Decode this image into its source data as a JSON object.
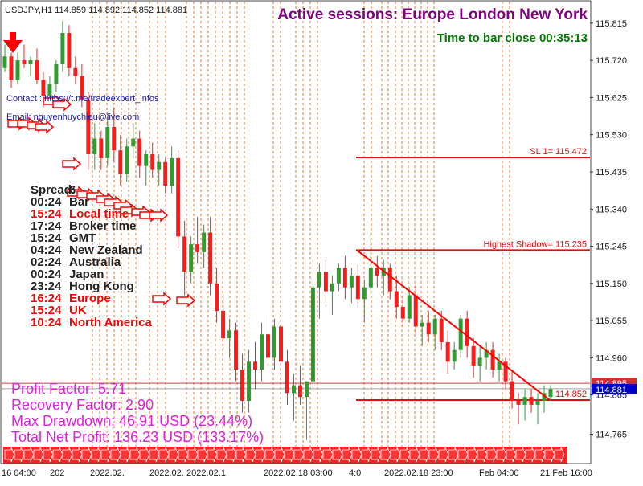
{
  "chart_data": {
    "type": "candlestick",
    "symbol_header": "USDJPY,H1  114.859 114.892 114.852 114.881",
    "ylim": [
      114.69,
      115.87
    ],
    "y_ticks": [
      "115.815",
      "115.720",
      "115.625",
      "115.530",
      "115.435",
      "115.340",
      "115.245",
      "115.150",
      "115.055",
      "114.960",
      "114.865",
      "114.765"
    ],
    "current_price_label": "114.881",
    "current_price": 114.881,
    "ask_price_label": "114.895",
    "ask_price": 114.895,
    "x_tick_labels": [
      "16 04:00",
      "202",
      "2022.02.",
      "2022.02.",
      "2022.02.1",
      "2022.02.18 03:00",
      "4:0",
      "2022.02.18 23:00",
      "Feb 04:00",
      "21 Feb 16:00"
    ],
    "session_title": "Active sessions:  Europe London New York",
    "bar_timer": "Time to bar close 00:35:13",
    "contact": "Contact : https://t.me/tradeexpert_infos",
    "email": "Email: nguyenhuychieu@live.com",
    "levels": [
      {
        "label": "SL 1= 115.472",
        "value": 115.472
      },
      {
        "label": "Highest Shadow= 115.235",
        "value": 115.235
      },
      {
        "label": "114.852",
        "value": 114.852
      }
    ],
    "info_lines": [
      {
        "time": "Spread:",
        "label": "6",
        "color": "#222222"
      },
      {
        "time": "00:24",
        "label": "Bar",
        "color": "#222222"
      },
      {
        "time": "15:24",
        "label": "Local time",
        "color": "#ff0000"
      },
      {
        "time": "17:24",
        "label": "Broker time",
        "color": "#222222"
      },
      {
        "time": "15:24",
        "label": "GMT",
        "color": "#222222"
      },
      {
        "time": "04:24",
        "label": "New Zealand",
        "color": "#222222"
      },
      {
        "time": "02:24",
        "label": "Australia",
        "color": "#222222"
      },
      {
        "time": "00:24",
        "label": "Japan",
        "color": "#222222"
      },
      {
        "time": "23:24",
        "label": "Hong Kong",
        "color": "#222222"
      },
      {
        "time": "16:24",
        "label": "Europe",
        "color": "#ff0000"
      },
      {
        "time": "15:24",
        "label": "UK",
        "color": "#ff0000"
      },
      {
        "time": "10:24",
        "label": "North America",
        "color": "#ff0000"
      }
    ],
    "stats": [
      "Profit Factor: 5.71",
      "Recovery Factor: 2.90",
      "Max Drawdown: 46.91 USD (23.44%)",
      "Total Net Profit: 136.23 USD (133.17%)"
    ],
    "candles": [
      [
        115.7,
        115.76,
        115.69,
        115.73
      ],
      [
        115.73,
        115.74,
        115.65,
        115.67
      ],
      [
        115.67,
        115.74,
        115.66,
        115.72
      ],
      [
        115.72,
        115.76,
        115.7,
        115.71
      ],
      [
        115.71,
        115.73,
        115.68,
        115.72
      ],
      [
        115.72,
        115.75,
        115.66,
        115.67
      ],
      [
        115.67,
        115.69,
        115.6,
        115.63
      ],
      [
        115.63,
        115.68,
        115.61,
        115.66
      ],
      [
        115.66,
        115.72,
        115.64,
        115.71
      ],
      [
        115.71,
        115.82,
        115.69,
        115.79
      ],
      [
        115.79,
        115.81,
        115.68,
        115.7
      ],
      [
        115.7,
        115.73,
        115.66,
        115.68
      ],
      [
        115.68,
        115.71,
        115.6,
        115.62
      ],
      [
        115.62,
        115.64,
        115.44,
        115.48
      ],
      [
        115.48,
        115.56,
        115.44,
        115.52
      ],
      [
        115.52,
        115.54,
        115.44,
        115.47
      ],
      [
        115.47,
        115.57,
        115.45,
        115.55
      ],
      [
        115.55,
        115.6,
        115.46,
        115.49
      ],
      [
        115.49,
        115.53,
        115.4,
        115.43
      ],
      [
        115.43,
        115.52,
        115.41,
        115.5
      ],
      [
        115.5,
        115.56,
        115.47,
        115.52
      ],
      [
        115.52,
        115.54,
        115.42,
        115.45
      ],
      [
        115.45,
        115.49,
        115.4,
        115.48
      ],
      [
        115.48,
        115.51,
        115.42,
        115.44
      ],
      [
        115.44,
        115.48,
        115.4,
        115.46
      ],
      [
        115.46,
        115.47,
        115.38,
        115.4
      ],
      [
        115.4,
        115.5,
        115.38,
        115.47
      ],
      [
        115.47,
        115.49,
        115.24,
        115.27
      ],
      [
        115.27,
        115.31,
        115.12,
        115.18
      ],
      [
        115.18,
        115.27,
        115.15,
        115.25
      ],
      [
        115.25,
        115.32,
        115.2,
        115.23
      ],
      [
        115.23,
        115.3,
        115.19,
        115.28
      ],
      [
        115.28,
        115.32,
        115.12,
        115.15
      ],
      [
        115.15,
        115.19,
        115.05,
        115.08
      ],
      [
        115.08,
        115.13,
        114.98,
        115.01
      ],
      [
        115.01,
        115.06,
        114.96,
        115.03
      ],
      [
        115.03,
        115.05,
        114.9,
        114.93
      ],
      [
        114.93,
        114.97,
        114.82,
        114.85
      ],
      [
        114.85,
        114.98,
        114.82,
        114.95
      ],
      [
        114.95,
        115.0,
        114.88,
        114.93
      ],
      [
        114.93,
        115.05,
        114.9,
        115.02
      ],
      [
        115.02,
        115.07,
        114.94,
        114.96
      ],
      [
        114.96,
        115.06,
        114.93,
        115.04
      ],
      [
        115.04,
        115.08,
        114.92,
        114.95
      ],
      [
        114.95,
        114.98,
        114.84,
        114.87
      ],
      [
        114.87,
        114.92,
        114.8,
        114.89
      ],
      [
        114.89,
        114.94,
        114.84,
        114.86
      ],
      [
        114.86,
        114.9,
        114.75,
        114.9
      ],
      [
        114.9,
        115.21,
        114.88,
        115.14
      ],
      [
        115.14,
        115.2,
        115.06,
        115.18
      ],
      [
        115.18,
        115.21,
        115.1,
        115.13
      ],
      [
        115.13,
        115.17,
        115.07,
        115.15
      ],
      [
        115.15,
        115.2,
        115.13,
        115.19
      ],
      [
        115.19,
        115.22,
        115.11,
        115.14
      ],
      [
        115.14,
        115.19,
        115.1,
        115.17
      ],
      [
        115.17,
        115.2,
        115.09,
        115.11
      ],
      [
        115.11,
        115.16,
        115.05,
        115.14
      ],
      [
        115.14,
        115.28,
        115.12,
        115.19
      ],
      [
        115.19,
        115.22,
        115.14,
        115.17
      ],
      [
        115.17,
        115.21,
        115.12,
        115.19
      ],
      [
        115.19,
        115.2,
        115.11,
        115.13
      ],
      [
        115.13,
        115.17,
        115.06,
        115.09
      ],
      [
        115.09,
        115.12,
        115.04,
        115.06
      ],
      [
        115.06,
        115.14,
        115.05,
        115.12
      ],
      [
        115.12,
        115.15,
        115.02,
        115.04
      ],
      [
        115.04,
        115.07,
        114.99,
        115.05
      ],
      [
        115.05,
        115.08,
        115.0,
        115.02
      ],
      [
        115.02,
        115.07,
        114.98,
        115.06
      ],
      [
        115.06,
        115.08,
        114.98,
        115.0
      ],
      [
        115.0,
        115.03,
        114.92,
        114.95
      ],
      [
        114.95,
        115.0,
        114.93,
        114.98
      ],
      [
        114.98,
        115.07,
        114.96,
        115.06
      ],
      [
        115.06,
        115.08,
        114.96,
        114.99
      ],
      [
        114.99,
        115.01,
        114.91,
        114.94
      ],
      [
        114.94,
        114.99,
        114.9,
        114.96
      ],
      [
        114.96,
        115.0,
        114.93,
        114.98
      ],
      [
        114.98,
        115.0,
        114.91,
        114.93
      ],
      [
        114.93,
        114.97,
        114.9,
        114.95
      ],
      [
        114.95,
        114.96,
        114.88,
        114.9
      ],
      [
        114.9,
        114.93,
        114.83,
        114.85
      ],
      [
        114.85,
        114.87,
        114.79,
        114.84
      ],
      [
        114.84,
        114.88,
        114.8,
        114.86
      ],
      [
        114.86,
        114.88,
        114.82,
        114.84
      ],
      [
        114.84,
        114.87,
        114.79,
        114.85
      ],
      [
        114.85,
        114.89,
        114.82,
        114.87
      ],
      [
        114.86,
        114.89,
        114.85,
        114.88
      ]
    ]
  }
}
